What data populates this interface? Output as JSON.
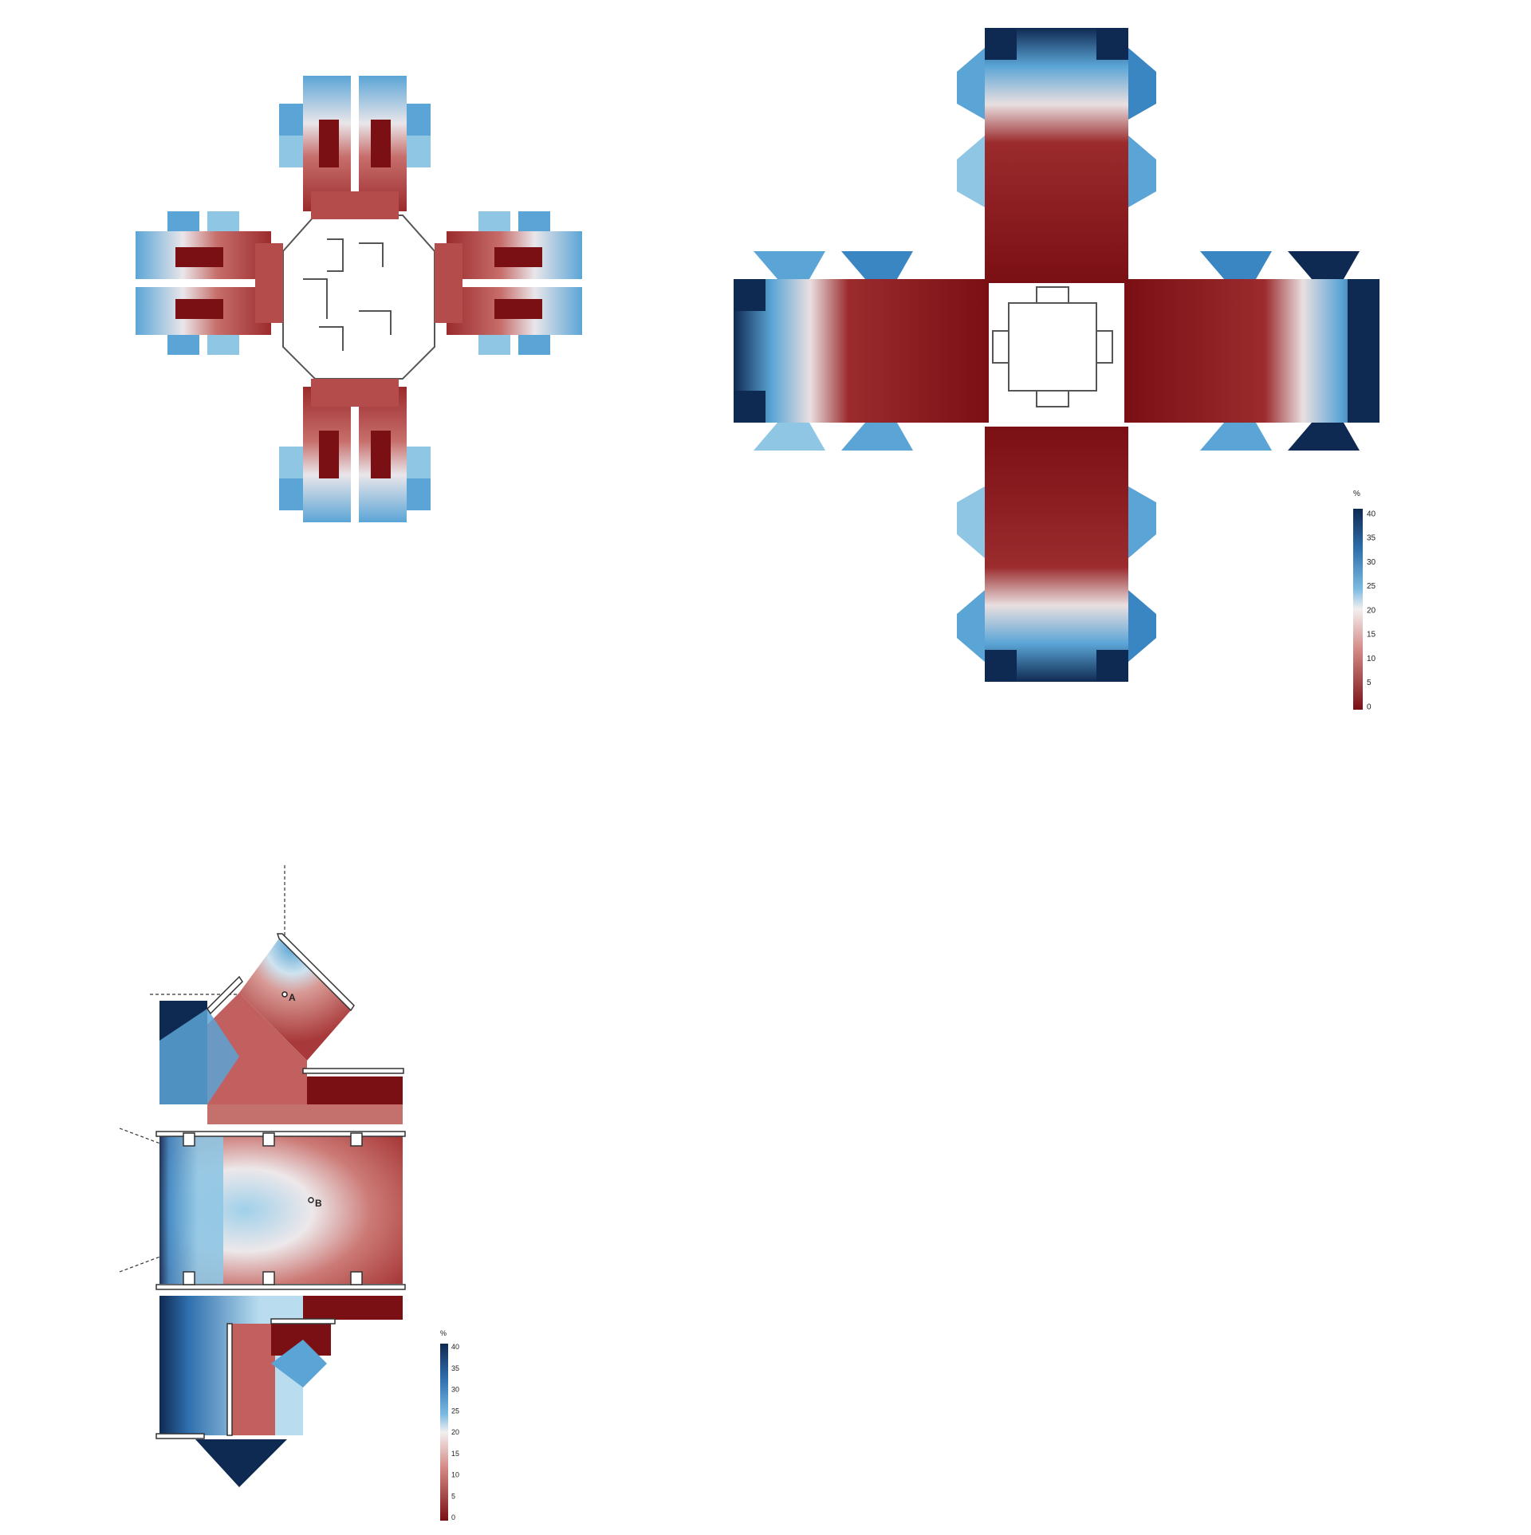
{
  "colors": {
    "scale": [
      "#7a0f14",
      "#a83a3a",
      "#d48a86",
      "#f3efef",
      "#8fc6e4",
      "#3a86c2",
      "#0f2a52"
    ],
    "wall": "#ffffff",
    "wall_stroke": "#444444",
    "label": "#222222"
  },
  "legend_top": {
    "unit": "%",
    "ticks": [
      "40",
      "35",
      "30",
      "25",
      "20",
      "15",
      "10",
      "5",
      "0"
    ]
  },
  "legend_bottom": {
    "unit": "%",
    "ticks": [
      "40",
      "35",
      "30",
      "25",
      "20",
      "15",
      "10",
      "5",
      "0"
    ]
  },
  "detail": {
    "point_a": "A",
    "point_b": "B"
  }
}
